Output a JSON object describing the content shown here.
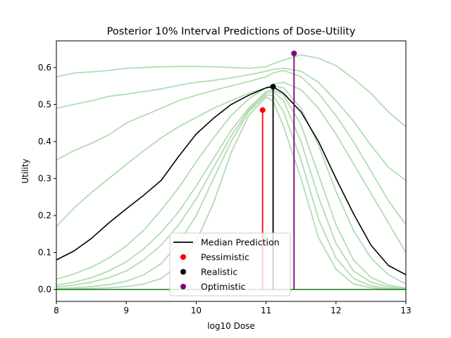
{
  "chart_data": {
    "type": "line",
    "title": "Posterior 10% Interval Predictions of Dose-Utility",
    "xlabel": "log10 Dose",
    "ylabel": "Utility",
    "xlim": [
      8,
      13
    ],
    "ylim": [
      -0.032,
      0.672
    ],
    "xticks": [
      8,
      9,
      10,
      11,
      12,
      13
    ],
    "xtick_labels": [
      "8",
      "9",
      "10",
      "11",
      "12",
      "13"
    ],
    "yticks": [
      0.0,
      0.1,
      0.2,
      0.3,
      0.4,
      0.5,
      0.6
    ],
    "ytick_labels": [
      "0.0",
      "0.1",
      "0.2",
      "0.3",
      "0.4",
      "0.5",
      "0.6"
    ],
    "grid": false,
    "legend": {
      "placement": "lower-center",
      "entries": [
        {
          "label": "Median Prediction",
          "kind": "line",
          "color": "#000000"
        },
        {
          "label": "Pessimistic",
          "kind": "marker",
          "color": "#ff0000"
        },
        {
          "label": "Realistic",
          "kind": "marker",
          "color": "#000000"
        },
        {
          "label": "Optimistic",
          "kind": "marker",
          "color": "#800080"
        }
      ]
    },
    "x": [
      8.0,
      8.25,
      8.5,
      8.75,
      9.0,
      9.25,
      9.5,
      9.75,
      10.0,
      10.25,
      10.5,
      10.75,
      11.0,
      11.1,
      11.25,
      11.5,
      11.75,
      12.0,
      12.25,
      12.5,
      12.75,
      13.0
    ],
    "quantile_series": [
      {
        "color": "#b2dcb2",
        "values": [
          0.001,
          0.002,
          0.003,
          0.005,
          0.008,
          0.015,
          0.03,
          0.065,
          0.13,
          0.235,
          0.37,
          0.47,
          0.52,
          0.51,
          0.44,
          0.3,
          0.14,
          0.055,
          0.015,
          0.005,
          0.001,
          0.0
        ]
      },
      {
        "color": "#b2dcb2",
        "values": [
          0.003,
          0.005,
          0.008,
          0.013,
          0.022,
          0.04,
          0.07,
          0.125,
          0.2,
          0.3,
          0.4,
          0.48,
          0.525,
          0.525,
          0.48,
          0.35,
          0.19,
          0.085,
          0.03,
          0.01,
          0.003,
          0.001
        ]
      },
      {
        "color": "#b2dcb2",
        "values": [
          0.007,
          0.012,
          0.02,
          0.032,
          0.05,
          0.08,
          0.12,
          0.175,
          0.245,
          0.33,
          0.415,
          0.485,
          0.53,
          0.535,
          0.51,
          0.4,
          0.25,
          0.125,
          0.05,
          0.02,
          0.007,
          0.002
        ]
      },
      {
        "color": "#b2dcb2",
        "values": [
          0.012,
          0.02,
          0.032,
          0.05,
          0.075,
          0.11,
          0.155,
          0.21,
          0.28,
          0.355,
          0.43,
          0.49,
          0.535,
          0.54,
          0.525,
          0.445,
          0.31,
          0.175,
          0.08,
          0.033,
          0.012,
          0.004
        ]
      },
      {
        "color": "#b2dcb2",
        "values": [
          0.028,
          0.042,
          0.06,
          0.085,
          0.118,
          0.16,
          0.215,
          0.275,
          0.345,
          0.41,
          0.47,
          0.515,
          0.545,
          0.55,
          0.545,
          0.49,
          0.39,
          0.265,
          0.16,
          0.085,
          0.04,
          0.015
        ]
      },
      {
        "color": "#b2dcb2",
        "values": [
          0.17,
          0.22,
          0.262,
          0.3,
          0.338,
          0.375,
          0.41,
          0.44,
          0.465,
          0.49,
          0.51,
          0.53,
          0.545,
          0.555,
          0.56,
          0.54,
          0.49,
          0.42,
          0.34,
          0.26,
          0.18,
          0.1
        ]
      },
      {
        "color": "#b2dcb2",
        "values": [
          0.35,
          0.375,
          0.395,
          0.418,
          0.45,
          0.47,
          0.49,
          0.51,
          0.525,
          0.538,
          0.55,
          0.562,
          0.575,
          0.585,
          0.592,
          0.575,
          0.53,
          0.47,
          0.4,
          0.32,
          0.24,
          0.175
        ]
      },
      {
        "color": "#b2dcb2",
        "values": [
          0.49,
          0.5,
          0.51,
          0.522,
          0.528,
          0.535,
          0.542,
          0.552,
          0.56,
          0.565,
          0.572,
          0.58,
          0.59,
          0.595,
          0.598,
          0.59,
          0.56,
          0.51,
          0.455,
          0.39,
          0.33,
          0.295
        ]
      },
      {
        "color": "#b2dcb2",
        "values": [
          0.575,
          0.585,
          0.588,
          0.592,
          0.598,
          0.6,
          0.602,
          0.603,
          0.603,
          0.602,
          0.6,
          0.598,
          0.602,
          0.61,
          0.62,
          0.634,
          0.625,
          0.605,
          0.57,
          0.53,
          0.48,
          0.44
        ]
      }
    ],
    "median_series": {
      "name": "Median Prediction",
      "color": "#000000",
      "values": [
        0.08,
        0.104,
        0.138,
        0.18,
        0.218,
        0.255,
        0.295,
        0.36,
        0.42,
        0.463,
        0.5,
        0.525,
        0.545,
        0.548,
        0.53,
        0.48,
        0.4,
        0.3,
        0.205,
        0.12,
        0.065,
        0.04
      ]
    },
    "dose_markers": [
      {
        "label": "Pessimistic",
        "x": 10.95,
        "y": 0.485,
        "color": "#ff0000"
      },
      {
        "label": "Realistic",
        "x": 11.1,
        "y": 0.548,
        "color": "#000000"
      },
      {
        "label": "Optimistic",
        "x": 11.4,
        "y": 0.638,
        "color": "#800080"
      }
    ]
  }
}
